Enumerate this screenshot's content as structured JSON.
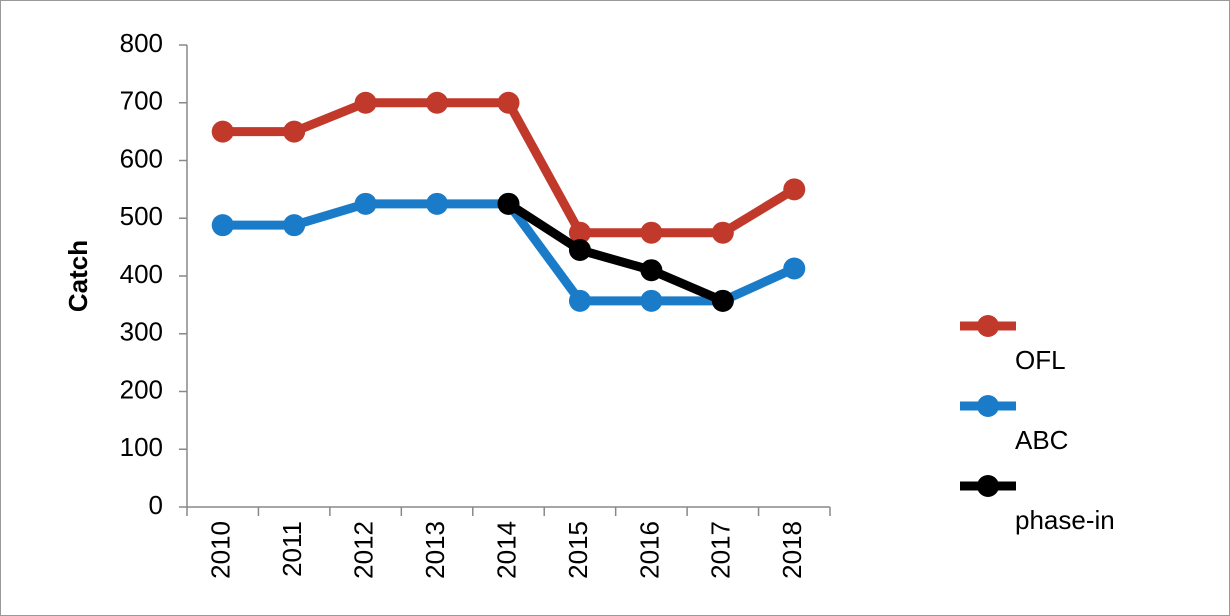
{
  "chart_data": {
    "type": "line",
    "y_label": "Catch",
    "categories": [
      "2010",
      "2011",
      "2012",
      "2013",
      "2014",
      "2015",
      "2016",
      "2017",
      "2018"
    ],
    "series": [
      {
        "name": "OFL",
        "color": "#c0392b",
        "values": [
          650,
          650,
          700,
          700,
          700,
          475,
          475,
          475,
          550
        ]
      },
      {
        "name": "ABC",
        "color": "#1a7cc9",
        "values": [
          488,
          488,
          525,
          525,
          525,
          357,
          357,
          357,
          413
        ]
      },
      {
        "name": "phase-in",
        "color": "#000000",
        "values": [
          null,
          null,
          null,
          null,
          525,
          445,
          410,
          357,
          null
        ]
      }
    ],
    "ylim": [
      0,
      800
    ],
    "yticks": [
      0,
      100,
      200,
      300,
      400,
      500,
      600,
      700,
      800
    ],
    "legend": "right"
  }
}
